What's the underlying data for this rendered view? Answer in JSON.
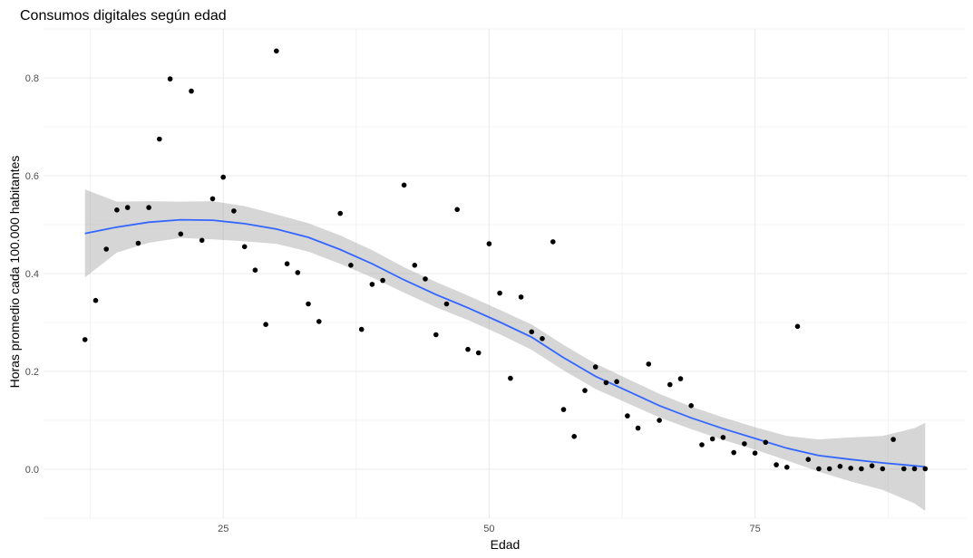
{
  "chart_data": {
    "type": "scatter",
    "title": "Consumos digitales según edad",
    "xlabel": "Edad",
    "ylabel": "Horas promedio cada 100.000 habitantes",
    "xlim": [
      8.1,
      94.9
    ],
    "ylim": [
      -0.1,
      0.9
    ],
    "x_ticks": [
      25,
      50,
      75
    ],
    "x_tick_labels": [
      "25",
      "50",
      "75"
    ],
    "y_ticks": [
      0.0,
      0.2,
      0.4,
      0.6,
      0.8
    ],
    "y_tick_labels": [
      "0.0",
      "0.2",
      "0.4",
      "0.6",
      "0.8"
    ],
    "grid": true,
    "points": [
      {
        "x": 12,
        "y": 0.265
      },
      {
        "x": 13,
        "y": 0.345
      },
      {
        "x": 14,
        "y": 0.45
      },
      {
        "x": 15,
        "y": 0.53
      },
      {
        "x": 16,
        "y": 0.535
      },
      {
        "x": 17,
        "y": 0.462
      },
      {
        "x": 18,
        "y": 0.535
      },
      {
        "x": 19,
        "y": 0.675
      },
      {
        "x": 20,
        "y": 0.798
      },
      {
        "x": 21,
        "y": 0.481
      },
      {
        "x": 22,
        "y": 0.773
      },
      {
        "x": 23,
        "y": 0.468
      },
      {
        "x": 24,
        "y": 0.553
      },
      {
        "x": 25,
        "y": 0.597
      },
      {
        "x": 26,
        "y": 0.528
      },
      {
        "x": 27,
        "y": 0.455
      },
      {
        "x": 28,
        "y": 0.407
      },
      {
        "x": 29,
        "y": 0.296
      },
      {
        "x": 30,
        "y": 0.855
      },
      {
        "x": 31,
        "y": 0.42
      },
      {
        "x": 32,
        "y": 0.402
      },
      {
        "x": 33,
        "y": 0.338
      },
      {
        "x": 34,
        "y": 0.302
      },
      {
        "x": 36,
        "y": 0.523
      },
      {
        "x": 37,
        "y": 0.417
      },
      {
        "x": 38,
        "y": 0.286
      },
      {
        "x": 39,
        "y": 0.378
      },
      {
        "x": 40,
        "y": 0.386
      },
      {
        "x": 42,
        "y": 0.581
      },
      {
        "x": 43,
        "y": 0.417
      },
      {
        "x": 44,
        "y": 0.389
      },
      {
        "x": 45,
        "y": 0.275
      },
      {
        "x": 46,
        "y": 0.338
      },
      {
        "x": 47,
        "y": 0.531
      },
      {
        "x": 48,
        "y": 0.245
      },
      {
        "x": 49,
        "y": 0.238
      },
      {
        "x": 50,
        "y": 0.461
      },
      {
        "x": 51,
        "y": 0.36
      },
      {
        "x": 52,
        "y": 0.186
      },
      {
        "x": 53,
        "y": 0.352
      },
      {
        "x": 54,
        "y": 0.281
      },
      {
        "x": 55,
        "y": 0.267
      },
      {
        "x": 56,
        "y": 0.465
      },
      {
        "x": 57,
        "y": 0.122
      },
      {
        "x": 58,
        "y": 0.067
      },
      {
        "x": 59,
        "y": 0.161
      },
      {
        "x": 60,
        "y": 0.209
      },
      {
        "x": 61,
        "y": 0.177
      },
      {
        "x": 62,
        "y": 0.179
      },
      {
        "x": 63,
        "y": 0.109
      },
      {
        "x": 64,
        "y": 0.084
      },
      {
        "x": 65,
        "y": 0.215
      },
      {
        "x": 66,
        "y": 0.1
      },
      {
        "x": 67,
        "y": 0.173
      },
      {
        "x": 68,
        "y": 0.185
      },
      {
        "x": 69,
        "y": 0.13
      },
      {
        "x": 70,
        "y": 0.05
      },
      {
        "x": 71,
        "y": 0.062
      },
      {
        "x": 72,
        "y": 0.065
      },
      {
        "x": 73,
        "y": 0.034
      },
      {
        "x": 74,
        "y": 0.052
      },
      {
        "x": 75,
        "y": 0.033
      },
      {
        "x": 76,
        "y": 0.055
      },
      {
        "x": 77,
        "y": 0.009
      },
      {
        "x": 78,
        "y": 0.004
      },
      {
        "x": 79,
        "y": 0.292
      },
      {
        "x": 80,
        "y": 0.02
      },
      {
        "x": 81,
        "y": 0.001
      },
      {
        "x": 82,
        "y": 0.001
      },
      {
        "x": 83,
        "y": 0.006
      },
      {
        "x": 84,
        "y": 0.002
      },
      {
        "x": 85,
        "y": 0.001
      },
      {
        "x": 86,
        "y": 0.007
      },
      {
        "x": 87,
        "y": 0.001
      },
      {
        "x": 88,
        "y": 0.061
      },
      {
        "x": 89,
        "y": 0.001
      },
      {
        "x": 90,
        "y": 0.001
      },
      {
        "x": 91,
        "y": 0.001
      }
    ],
    "smooth": {
      "x": [
        12,
        15,
        18,
        21,
        24,
        27,
        30,
        33,
        36,
        39,
        42,
        45,
        48,
        51,
        54,
        57,
        60,
        63,
        66,
        69,
        72,
        75,
        78,
        81,
        84,
        87,
        90,
        91
      ],
      "y": [
        0.482,
        0.495,
        0.505,
        0.51,
        0.509,
        0.502,
        0.491,
        0.474,
        0.449,
        0.42,
        0.387,
        0.357,
        0.33,
        0.301,
        0.27,
        0.228,
        0.19,
        0.16,
        0.13,
        0.105,
        0.083,
        0.063,
        0.043,
        0.028,
        0.02,
        0.013,
        0.007,
        0.005
      ],
      "ymin": [
        0.392,
        0.443,
        0.463,
        0.473,
        0.47,
        0.466,
        0.461,
        0.445,
        0.42,
        0.392,
        0.361,
        0.331,
        0.305,
        0.276,
        0.244,
        0.202,
        0.164,
        0.135,
        0.106,
        0.082,
        0.06,
        0.04,
        0.018,
        -0.005,
        -0.025,
        -0.042,
        -0.07,
        -0.085
      ],
      "ymax": [
        0.572,
        0.547,
        0.548,
        0.547,
        0.548,
        0.538,
        0.521,
        0.503,
        0.478,
        0.448,
        0.413,
        0.383,
        0.355,
        0.326,
        0.296,
        0.254,
        0.216,
        0.185,
        0.154,
        0.128,
        0.106,
        0.086,
        0.068,
        0.061,
        0.065,
        0.068,
        0.084,
        0.095
      ]
    },
    "colors": {
      "points": "#000000",
      "smooth_line": "#3366FF",
      "band": "#999999",
      "grid": "#ebebeb"
    }
  }
}
